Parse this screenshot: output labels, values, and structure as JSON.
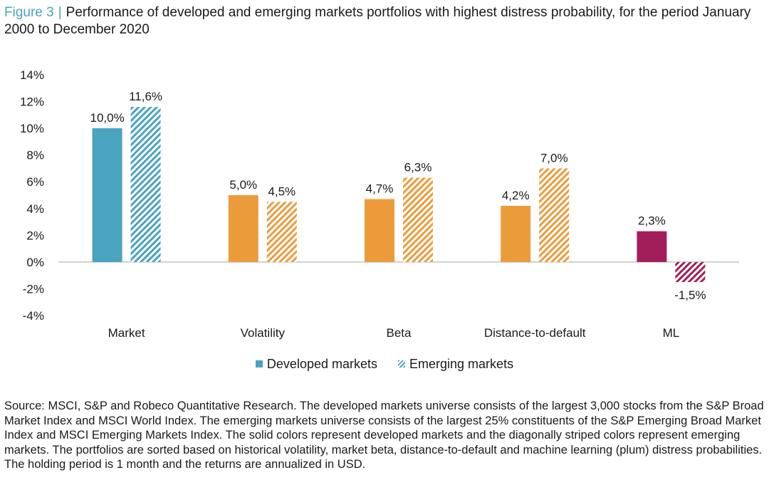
{
  "figure": {
    "label": "Figure 3",
    "title": "Performance of developed and emerging markets portfolios with highest distress probability, for the period January 2000 to December 2020"
  },
  "chart_data": {
    "type": "bar",
    "categories": [
      "Market",
      "Volatility",
      "Beta",
      "Distance-to-default",
      "ML"
    ],
    "series": [
      {
        "name": "Developed markets",
        "pattern": "solid",
        "values": [
          10.0,
          5.0,
          4.7,
          4.2,
          2.3
        ]
      },
      {
        "name": "Emerging markets",
        "pattern": "diagonal-stripes",
        "values": [
          11.6,
          4.5,
          6.3,
          7.0,
          -1.5
        ]
      }
    ],
    "value_labels": [
      [
        "10,0%",
        "5,0%",
        "4,7%",
        "4,2%",
        "2,3%"
      ],
      [
        "11,6%",
        "4,5%",
        "6,3%",
        "7,0%",
        "-1,5%"
      ]
    ],
    "category_colors": [
      "#4aa3c0",
      "#ec9b3b",
      "#ec9b3b",
      "#ec9b3b",
      "#a21e5a"
    ],
    "ylim": [
      -4,
      14
    ],
    "yticks": [
      -4,
      -2,
      0,
      2,
      4,
      6,
      8,
      10,
      12,
      14
    ],
    "ytick_labels": [
      "-4%",
      "-2%",
      "0%",
      "2%",
      "4%",
      "6%",
      "8%",
      "10%",
      "12%",
      "14%"
    ],
    "grid": false,
    "legend_position": "bottom-center",
    "title": "",
    "xlabel": "",
    "ylabel": ""
  },
  "legend": {
    "developed_label": "Developed markets",
    "emerging_label": "Emerging markets"
  },
  "source_note": "Source: MSCI, S&P and Robeco Quantitative Research. The developed markets universe consists of the largest 3,000 stocks from the S&P Broad Market Index and MSCI World Index. The emerging markets universe consists of the largest 25% constituents of the S&P Emerging Broad Market Index and MSCI Emerging Markets Index. The solid colors represent developed markets and the diagonally striped colors represent emerging markets. The portfolios are sorted based on historical volatility, market beta, distance-to-default and machine learning (plum) distress probabilities. The holding period is 1 month and the returns are annualized in USD."
}
